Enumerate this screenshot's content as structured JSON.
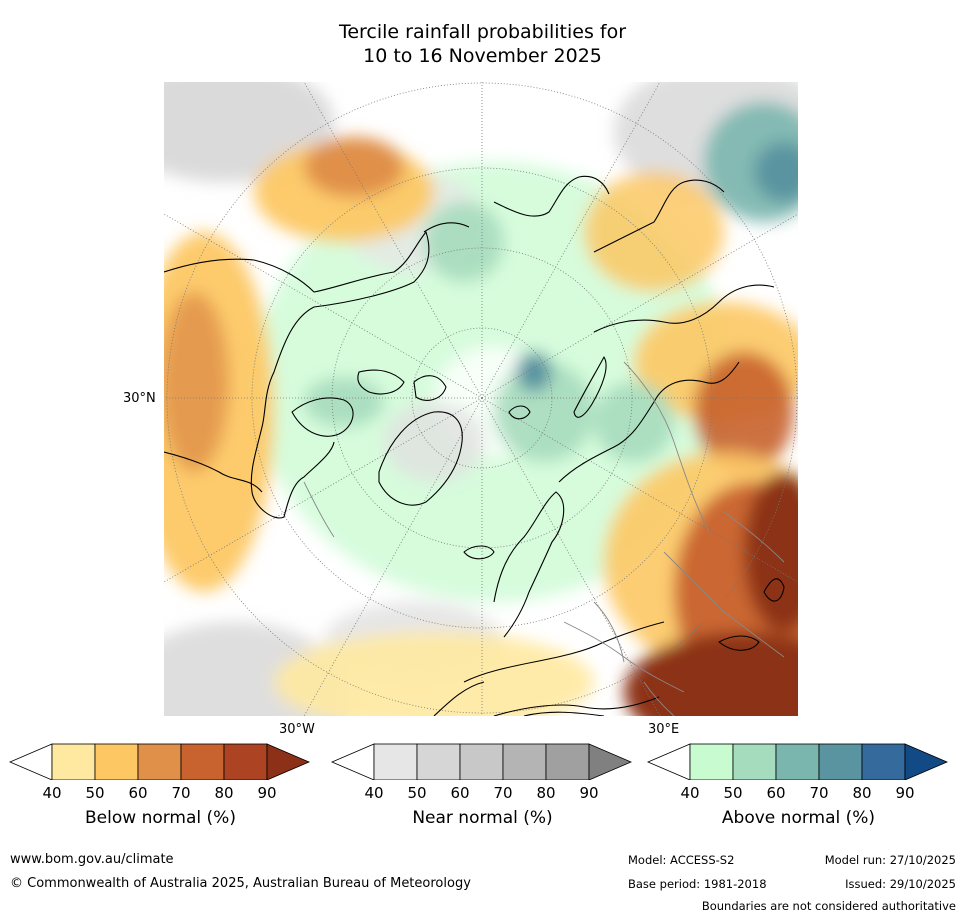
{
  "title": {
    "line1": "Tercile rainfall probabilities for",
    "line2": "10 to 16 November 2025"
  },
  "map": {
    "projection": "polar-stereographic-north",
    "labels": {
      "lat_30n": "30°N",
      "lon_30w": "30°W",
      "lon_30e": "30°E"
    },
    "colors": {
      "ocean_background": "#ffffff",
      "coastline": "#000000",
      "borders": "#888888",
      "graticule": "#777777"
    }
  },
  "colorbars": [
    {
      "id": "below",
      "label": "Below normal (%)",
      "ticks": [
        "40",
        "50",
        "60",
        "70",
        "80",
        "90"
      ],
      "colors": [
        "#ffffff",
        "#ffe9a0",
        "#fdc864",
        "#e09048",
        "#c8622e",
        "#ac4424",
        "#8c3018"
      ]
    },
    {
      "id": "near",
      "label": "Near normal (%)",
      "ticks": [
        "40",
        "50",
        "60",
        "70",
        "80",
        "90"
      ],
      "colors": [
        "#ffffff",
        "#e6e6e6",
        "#d6d6d6",
        "#c8c8c8",
        "#b4b4b4",
        "#a0a0a0",
        "#808080"
      ]
    },
    {
      "id": "above",
      "label": "Above normal (%)",
      "ticks": [
        "40",
        "50",
        "60",
        "70",
        "80",
        "90"
      ],
      "colors": [
        "#ffffff",
        "#c8fbd0",
        "#a6dcbe",
        "#7ab6ae",
        "#5a94a0",
        "#346a9c",
        "#124a86"
      ]
    }
  ],
  "footer": {
    "website": "www.bom.gov.au/climate",
    "copyright": "© Commonwealth of Australia 2025, Australian Bureau of Meteorology",
    "model": "Model: ACCESS-S2",
    "model_run": "Model run: 27/10/2025",
    "base_period": "Base period: 1981-2018",
    "issued": "Issued: 29/10/2025",
    "disclaimer": "Boundaries are not considered authoritative"
  }
}
